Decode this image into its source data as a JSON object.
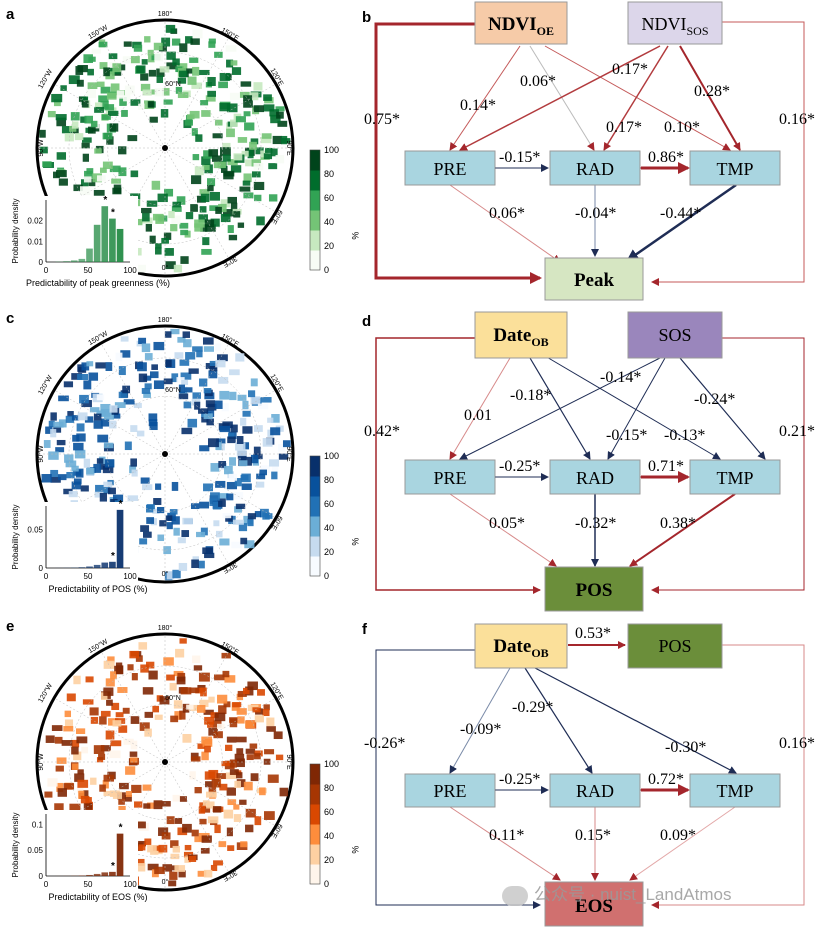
{
  "panels": {
    "a": {
      "letter": "a",
      "xlabel": "Predictability of peak greenness (%)",
      "ylabel": "Probability density",
      "yticks": [
        "0",
        "0.01",
        "0.02"
      ],
      "xticks": [
        "0",
        "50",
        "100"
      ],
      "colorbar_ticks": [
        "0",
        "20",
        "40",
        "60",
        "80",
        "100"
      ],
      "colorbar_unit": "%",
      "colormap": [
        "#f7fcf5",
        "#c7e9c0",
        "#74c476",
        "#31a354",
        "#006d2c",
        "#00441b"
      ],
      "hist_color": "#238b45",
      "hist_values": [
        0,
        0.0002,
        0.0004,
        0.0008,
        0.0015,
        0.0065,
        0.018,
        0.027,
        0.021,
        0.016
      ],
      "hist_ymax": 0.03,
      "stars": [
        7,
        8
      ]
    },
    "c": {
      "letter": "c",
      "xlabel": "Predictability of POS (%)",
      "ylabel": "Probability density",
      "yticks": [
        "0",
        "0.05"
      ],
      "xticks": [
        "0",
        "50",
        "100"
      ],
      "colorbar_ticks": [
        "0",
        "20",
        "40",
        "60",
        "80",
        "100"
      ],
      "colorbar_unit": "%",
      "colormap": [
        "#f7fbff",
        "#c6dbef",
        "#6baed6",
        "#2171b5",
        "#08519c",
        "#08306b"
      ],
      "hist_color": "#08306b",
      "hist_values": [
        0,
        0.0002,
        0.0003,
        0.0005,
        0.001,
        0.002,
        0.004,
        0.007,
        0.008,
        0.075
      ],
      "hist_ymax": 0.08,
      "stars": [
        8,
        9
      ]
    },
    "e": {
      "letter": "e",
      "xlabel": "Predictability of EOS (%)",
      "ylabel": "Probability density",
      "yticks": [
        "0",
        "0.05",
        "0.1"
      ],
      "xticks": [
        "0",
        "50",
        "100"
      ],
      "colorbar_ticks": [
        "0",
        "20",
        "40",
        "60",
        "80",
        "100"
      ],
      "colorbar_unit": "%",
      "colormap": [
        "#fff5eb",
        "#fdd0a2",
        "#fd8d3c",
        "#d94801",
        "#a63603",
        "#7f2704"
      ],
      "hist_color": "#7f2704",
      "hist_values": [
        0,
        0.0002,
        0.0003,
        0.0005,
        0.001,
        0.002,
        0.004,
        0.007,
        0.008,
        0.082
      ],
      "hist_ymax": 0.12,
      "stars": [
        8,
        9
      ]
    }
  },
  "map_labels": {
    "lon_180": "180°",
    "lon_150w": "150°W",
    "lon_150e": "150°E",
    "lon_120w": "120°W",
    "lon_120e": "120°E",
    "lon_90w": "90°W",
    "lon_90e": "90°E",
    "lon_60e": "60°E",
    "lon_30e": "30°E",
    "lon_0": "0°",
    "lat_60": "60°N"
  },
  "diagrams": {
    "b": {
      "letter": "b",
      "boxes": {
        "ndvi_oe": {
          "main": "NDVI",
          "sub": "OE"
        },
        "ndvi_sos": {
          "main": "NDVI",
          "sub": "SOS"
        },
        "pre": "PRE",
        "rad": "RAD",
        "tmp": "TMP",
        "peak": "Peak"
      },
      "coefs": {
        "oe_pre": "0.14*",
        "oe_tmp": "0.10*",
        "sos_pre": "0.17*",
        "sos_rad": "0.17*",
        "sos_tmp": "0.28*",
        "oe_rad": "0.06*",
        "oe_peak": "0.75*",
        "sos_peak": "0.16*",
        "pre_rad": "-0.15*",
        "rad_tmp": "0.86*",
        "pre_peak": "0.06*",
        "rad_peak": "-0.04*",
        "tmp_peak": "-0.44*"
      }
    },
    "d": {
      "letter": "d",
      "boxes": {
        "date_ob": {
          "main": "Date",
          "sub": "OB"
        },
        "sos": "SOS",
        "pre": "PRE",
        "rad": "RAD",
        "tmp": "TMP",
        "pos": "POS"
      },
      "coefs": {
        "ob_pre": "0.01",
        "ob_rad": "-0.18*",
        "ob_tmp": "-0.13*",
        "sos_pre": "-0.14*",
        "sos_rad": "-0.15*",
        "sos_tmp": "-0.24*",
        "ob_pos": "0.42*",
        "sos_pos": "0.21*",
        "pre_rad": "-0.25*",
        "rad_tmp": "0.71*",
        "pre_pos": "0.05*",
        "rad_pos": "-0.32*",
        "tmp_pos": "0.38*"
      }
    },
    "f": {
      "letter": "f",
      "boxes": {
        "date_ob": {
          "main": "Date",
          "sub": "OB"
        },
        "pos": "POS",
        "pre": "PRE",
        "rad": "RAD",
        "tmp": "TMP",
        "eos": "EOS"
      },
      "coefs": {
        "ob_pos": "0.53*",
        "ob_pre": "-0.09*",
        "ob_rad": "-0.29*",
        "ob_tmp": "-0.30*",
        "ob_eos": "-0.26*",
        "pos_eos": "0.16*",
        "pre_rad": "-0.25*",
        "rad_tmp": "0.72*",
        "pre_eos": "0.11*",
        "rad_eos": "0.15*",
        "tmp_eos": "0.09*"
      }
    }
  },
  "colors": {
    "positive": "#a4262c",
    "negative": "#1f2d55",
    "box_climate": "#a9d5e0",
    "box_ndvi_oe": "#f6cba8",
    "box_ndvi_sos": "#dcd6ea",
    "box_peak": "#d6e6c2",
    "box_date": "#fbe09a",
    "box_sos": "#9a86bc",
    "box_pos": "#6b8e3a",
    "box_eos": "#d0706f"
  },
  "watermark": "公众号 · nuist_LandAtmos"
}
